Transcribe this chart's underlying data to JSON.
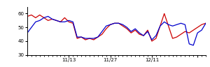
{
  "red_y": [
    58,
    59,
    57,
    59,
    57,
    55,
    56,
    55,
    54,
    57,
    54,
    53,
    42,
    43,
    41,
    42,
    41,
    43,
    45,
    49,
    52,
    53,
    53,
    51,
    49,
    46,
    48,
    45,
    44,
    48,
    40,
    42,
    51,
    60,
    51,
    42,
    43,
    45,
    47,
    46,
    48,
    50,
    52,
    53
  ],
  "blue_y": [
    46,
    50,
    54,
    55,
    57,
    58,
    56,
    55,
    54,
    54,
    55,
    54,
    43,
    43,
    42,
    42,
    42,
    43,
    47,
    51,
    52,
    53,
    53,
    52,
    50,
    47,
    49,
    46,
    44,
    47,
    41,
    44,
    51,
    54,
    52,
    51,
    52,
    53,
    52,
    38,
    37,
    46,
    48,
    53
  ],
  "ylim": [
    30,
    65
  ],
  "yticks": [
    30,
    40,
    50,
    60
  ],
  "xtick_positions": [
    10,
    20,
    30,
    41
  ],
  "xtick_labels": [
    "11/13",
    "11/27",
    "12/11",
    ""
  ],
  "red_color": "#cc0000",
  "blue_color": "#0000cc",
  "bg_color": "#ffffff",
  "linewidth": 0.9
}
